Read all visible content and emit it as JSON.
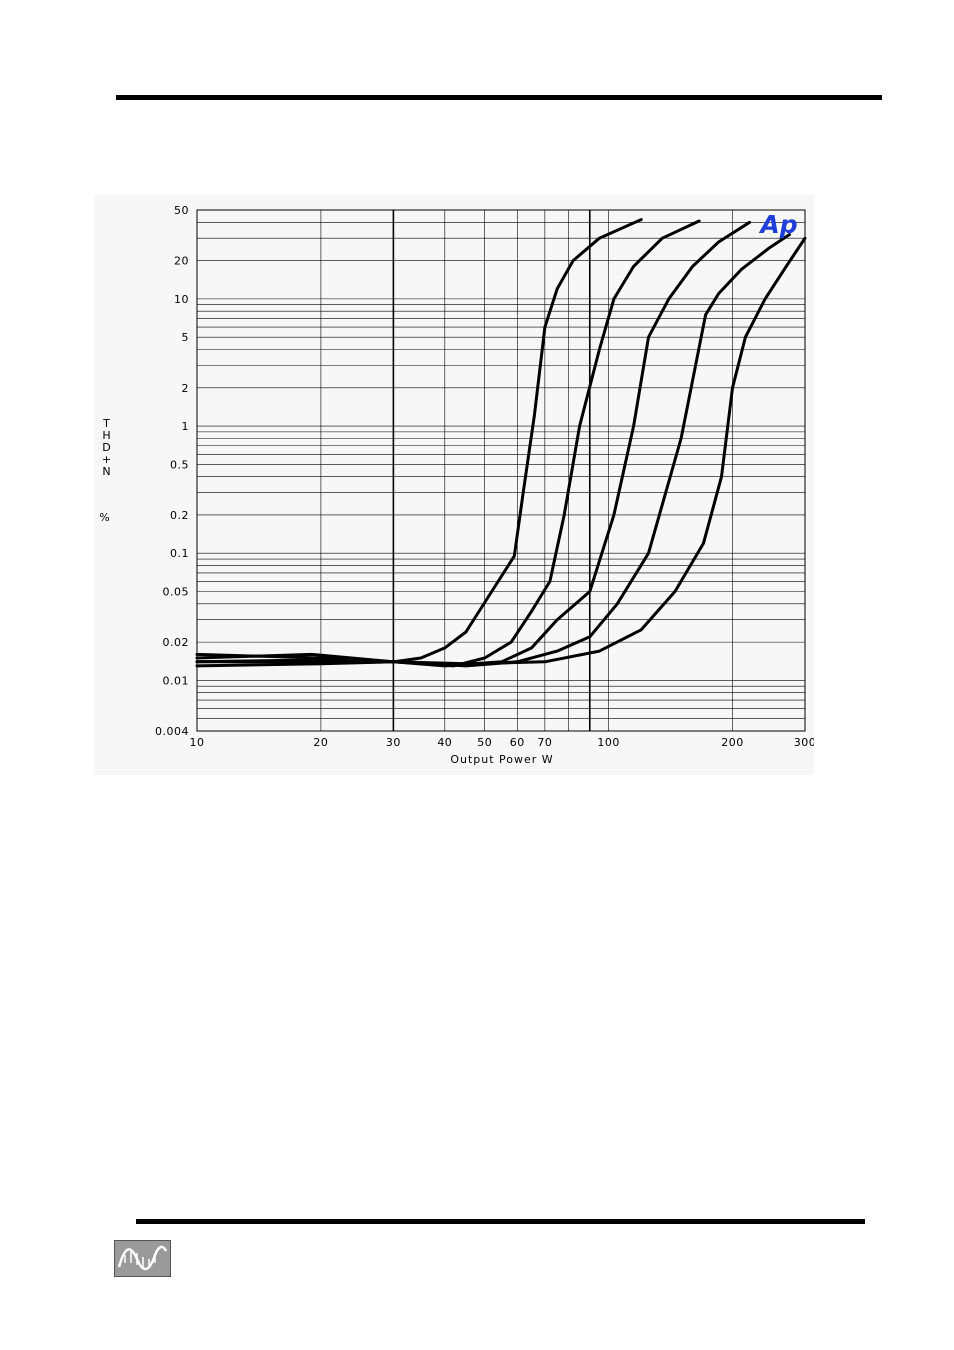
{
  "page": {
    "header_rule": "header-rule",
    "footer_rule": "footer-rule"
  },
  "footer": {
    "logo_icon": "sine-wave-logo-icon"
  },
  "colors": {
    "curve": "#000000",
    "grid": "#000000",
    "panel": "#f7f7f7",
    "brand_logo": "#1f3fd8"
  },
  "chart_data": {
    "type": "line",
    "title": "",
    "xlabel": "Output Power   W",
    "ylabel": "THD+N %",
    "ylabel_letters": [
      "T",
      "H",
      "D",
      "+",
      "N"
    ],
    "ylabel_unit": "%",
    "xscale": "log",
    "yscale": "log",
    "xlim": [
      10,
      300
    ],
    "ylim": [
      0.004,
      50
    ],
    "grid": true,
    "legend": "none",
    "brand_mark": "Ap",
    "x_ticks": [
      10,
      20,
      30,
      40,
      50,
      60,
      70,
      100,
      200,
      300
    ],
    "x_tick_labels": [
      "10",
      "20",
      "30",
      "40",
      "50",
      "60",
      "70",
      "100",
      "200",
      "300"
    ],
    "y_ticks": [
      0.004,
      0.01,
      0.02,
      0.05,
      0.1,
      0.2,
      0.5,
      1,
      2,
      5,
      10,
      20,
      50
    ],
    "y_tick_labels": [
      "0.004",
      "0.01",
      "0.02",
      "0.05",
      "0.1",
      "0.2",
      "0.5",
      "1",
      "2",
      "5",
      "10",
      "20",
      "50"
    ],
    "x_bold_lines": [
      30,
      90
    ],
    "series": [
      {
        "points": [
          [
            10,
            0.015
          ],
          [
            19,
            0.016
          ],
          [
            30,
            0.014
          ],
          [
            35,
            0.015
          ],
          [
            40,
            0.018
          ],
          [
            45,
            0.024
          ],
          [
            52,
            0.05
          ],
          [
            59,
            0.095
          ],
          [
            62,
            0.3
          ],
          [
            66,
            1.2
          ],
          [
            70,
            6
          ],
          [
            75,
            12
          ],
          [
            82,
            20
          ],
          [
            95,
            30
          ],
          [
            120,
            42
          ]
        ]
      },
      {
        "points": [
          [
            10,
            0.014
          ],
          [
            20,
            0.014
          ],
          [
            30,
            0.014
          ],
          [
            42,
            0.013
          ],
          [
            50,
            0.015
          ],
          [
            58,
            0.02
          ],
          [
            65,
            0.035
          ],
          [
            72,
            0.06
          ],
          [
            78,
            0.2
          ],
          [
            85,
            1.0
          ],
          [
            95,
            4
          ],
          [
            103,
            10
          ],
          [
            115,
            18
          ],
          [
            135,
            30
          ],
          [
            166,
            41
          ]
        ]
      },
      {
        "points": [
          [
            10,
            0.016
          ],
          [
            20,
            0.015
          ],
          [
            30,
            0.014
          ],
          [
            40,
            0.013
          ],
          [
            55,
            0.014
          ],
          [
            65,
            0.018
          ],
          [
            75,
            0.03
          ],
          [
            90,
            0.05
          ],
          [
            103,
            0.2
          ],
          [
            115,
            1.0
          ],
          [
            125,
            5
          ],
          [
            140,
            10
          ],
          [
            160,
            18
          ],
          [
            185,
            28
          ],
          [
            220,
            40
          ]
        ]
      },
      {
        "points": [
          [
            10,
            0.014
          ],
          [
            20,
            0.0145
          ],
          [
            30,
            0.014
          ],
          [
            45,
            0.013
          ],
          [
            60,
            0.014
          ],
          [
            75,
            0.017
          ],
          [
            90,
            0.022
          ],
          [
            105,
            0.04
          ],
          [
            125,
            0.1
          ],
          [
            150,
            0.8
          ],
          [
            172,
            7.5
          ],
          [
            185,
            11
          ],
          [
            210,
            17
          ],
          [
            245,
            25
          ],
          [
            275,
            32
          ]
        ]
      },
      {
        "points": [
          [
            10,
            0.013
          ],
          [
            20,
            0.0135
          ],
          [
            30,
            0.014
          ],
          [
            45,
            0.0135
          ],
          [
            70,
            0.014
          ],
          [
            95,
            0.017
          ],
          [
            120,
            0.025
          ],
          [
            145,
            0.05
          ],
          [
            170,
            0.12
          ],
          [
            188,
            0.4
          ],
          [
            200,
            2
          ],
          [
            215,
            5
          ],
          [
            240,
            10
          ],
          [
            270,
            18
          ],
          [
            300,
            30
          ]
        ]
      }
    ]
  }
}
